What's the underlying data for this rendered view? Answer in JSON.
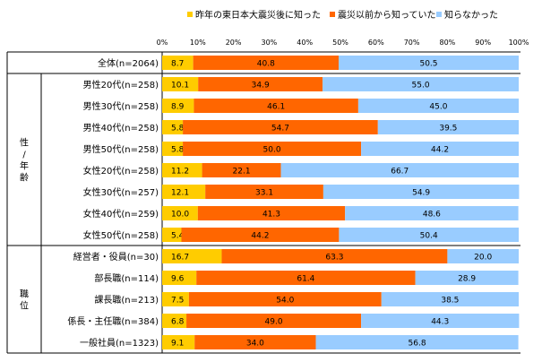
{
  "chart_data": {
    "type": "bar",
    "orientation": "horizontal",
    "stacked": "percent",
    "xlim": [
      0,
      100
    ],
    "x_ticks": [
      "0%",
      "10%",
      "20%",
      "30%",
      "40%",
      "50%",
      "60%",
      "70%",
      "80%",
      "90%",
      "100%"
    ],
    "categories": [
      "全体(n=2064)",
      "男性20代(n=258)",
      "男性30代(n=258)",
      "男性40代(n=258)",
      "男性50代(n=258)",
      "女性20代(n=258)",
      "女性30代(n=257)",
      "女性40代(n=259)",
      "女性50代(n=258)",
      "経営者・役員(n=30)",
      "部長職(n=114)",
      "課長職(n=213)",
      "係長・主任職(n=384)",
      "一般社員(n=1323)"
    ],
    "groups": [
      {
        "label": [
          "性",
          "/",
          "年",
          "齢"
        ],
        "range": [
          1,
          8
        ]
      },
      {
        "label": [
          "職",
          "位"
        ],
        "range": [
          9,
          13
        ]
      }
    ],
    "series": [
      {
        "name": "昨年の東日本大震災後に知った",
        "color": "#FFCC00",
        "values": [
          8.7,
          10.1,
          8.9,
          5.8,
          5.8,
          11.2,
          12.1,
          10.0,
          5.4,
          16.7,
          9.6,
          7.5,
          6.8,
          9.1
        ]
      },
      {
        "name": "震災以前から知っていた",
        "color": "#FF6600",
        "values": [
          40.8,
          34.9,
          46.1,
          54.7,
          50.0,
          22.1,
          33.1,
          41.3,
          44.2,
          63.3,
          61.4,
          54.0,
          49.0,
          34.0
        ]
      },
      {
        "name": "知らなかった",
        "color": "#99CCFF",
        "values": [
          50.5,
          55.0,
          45.0,
          39.5,
          44.2,
          66.7,
          54.9,
          48.6,
          50.4,
          20.0,
          28.9,
          38.5,
          44.3,
          56.8
        ]
      }
    ],
    "legend_position": "top",
    "grid": false
  }
}
